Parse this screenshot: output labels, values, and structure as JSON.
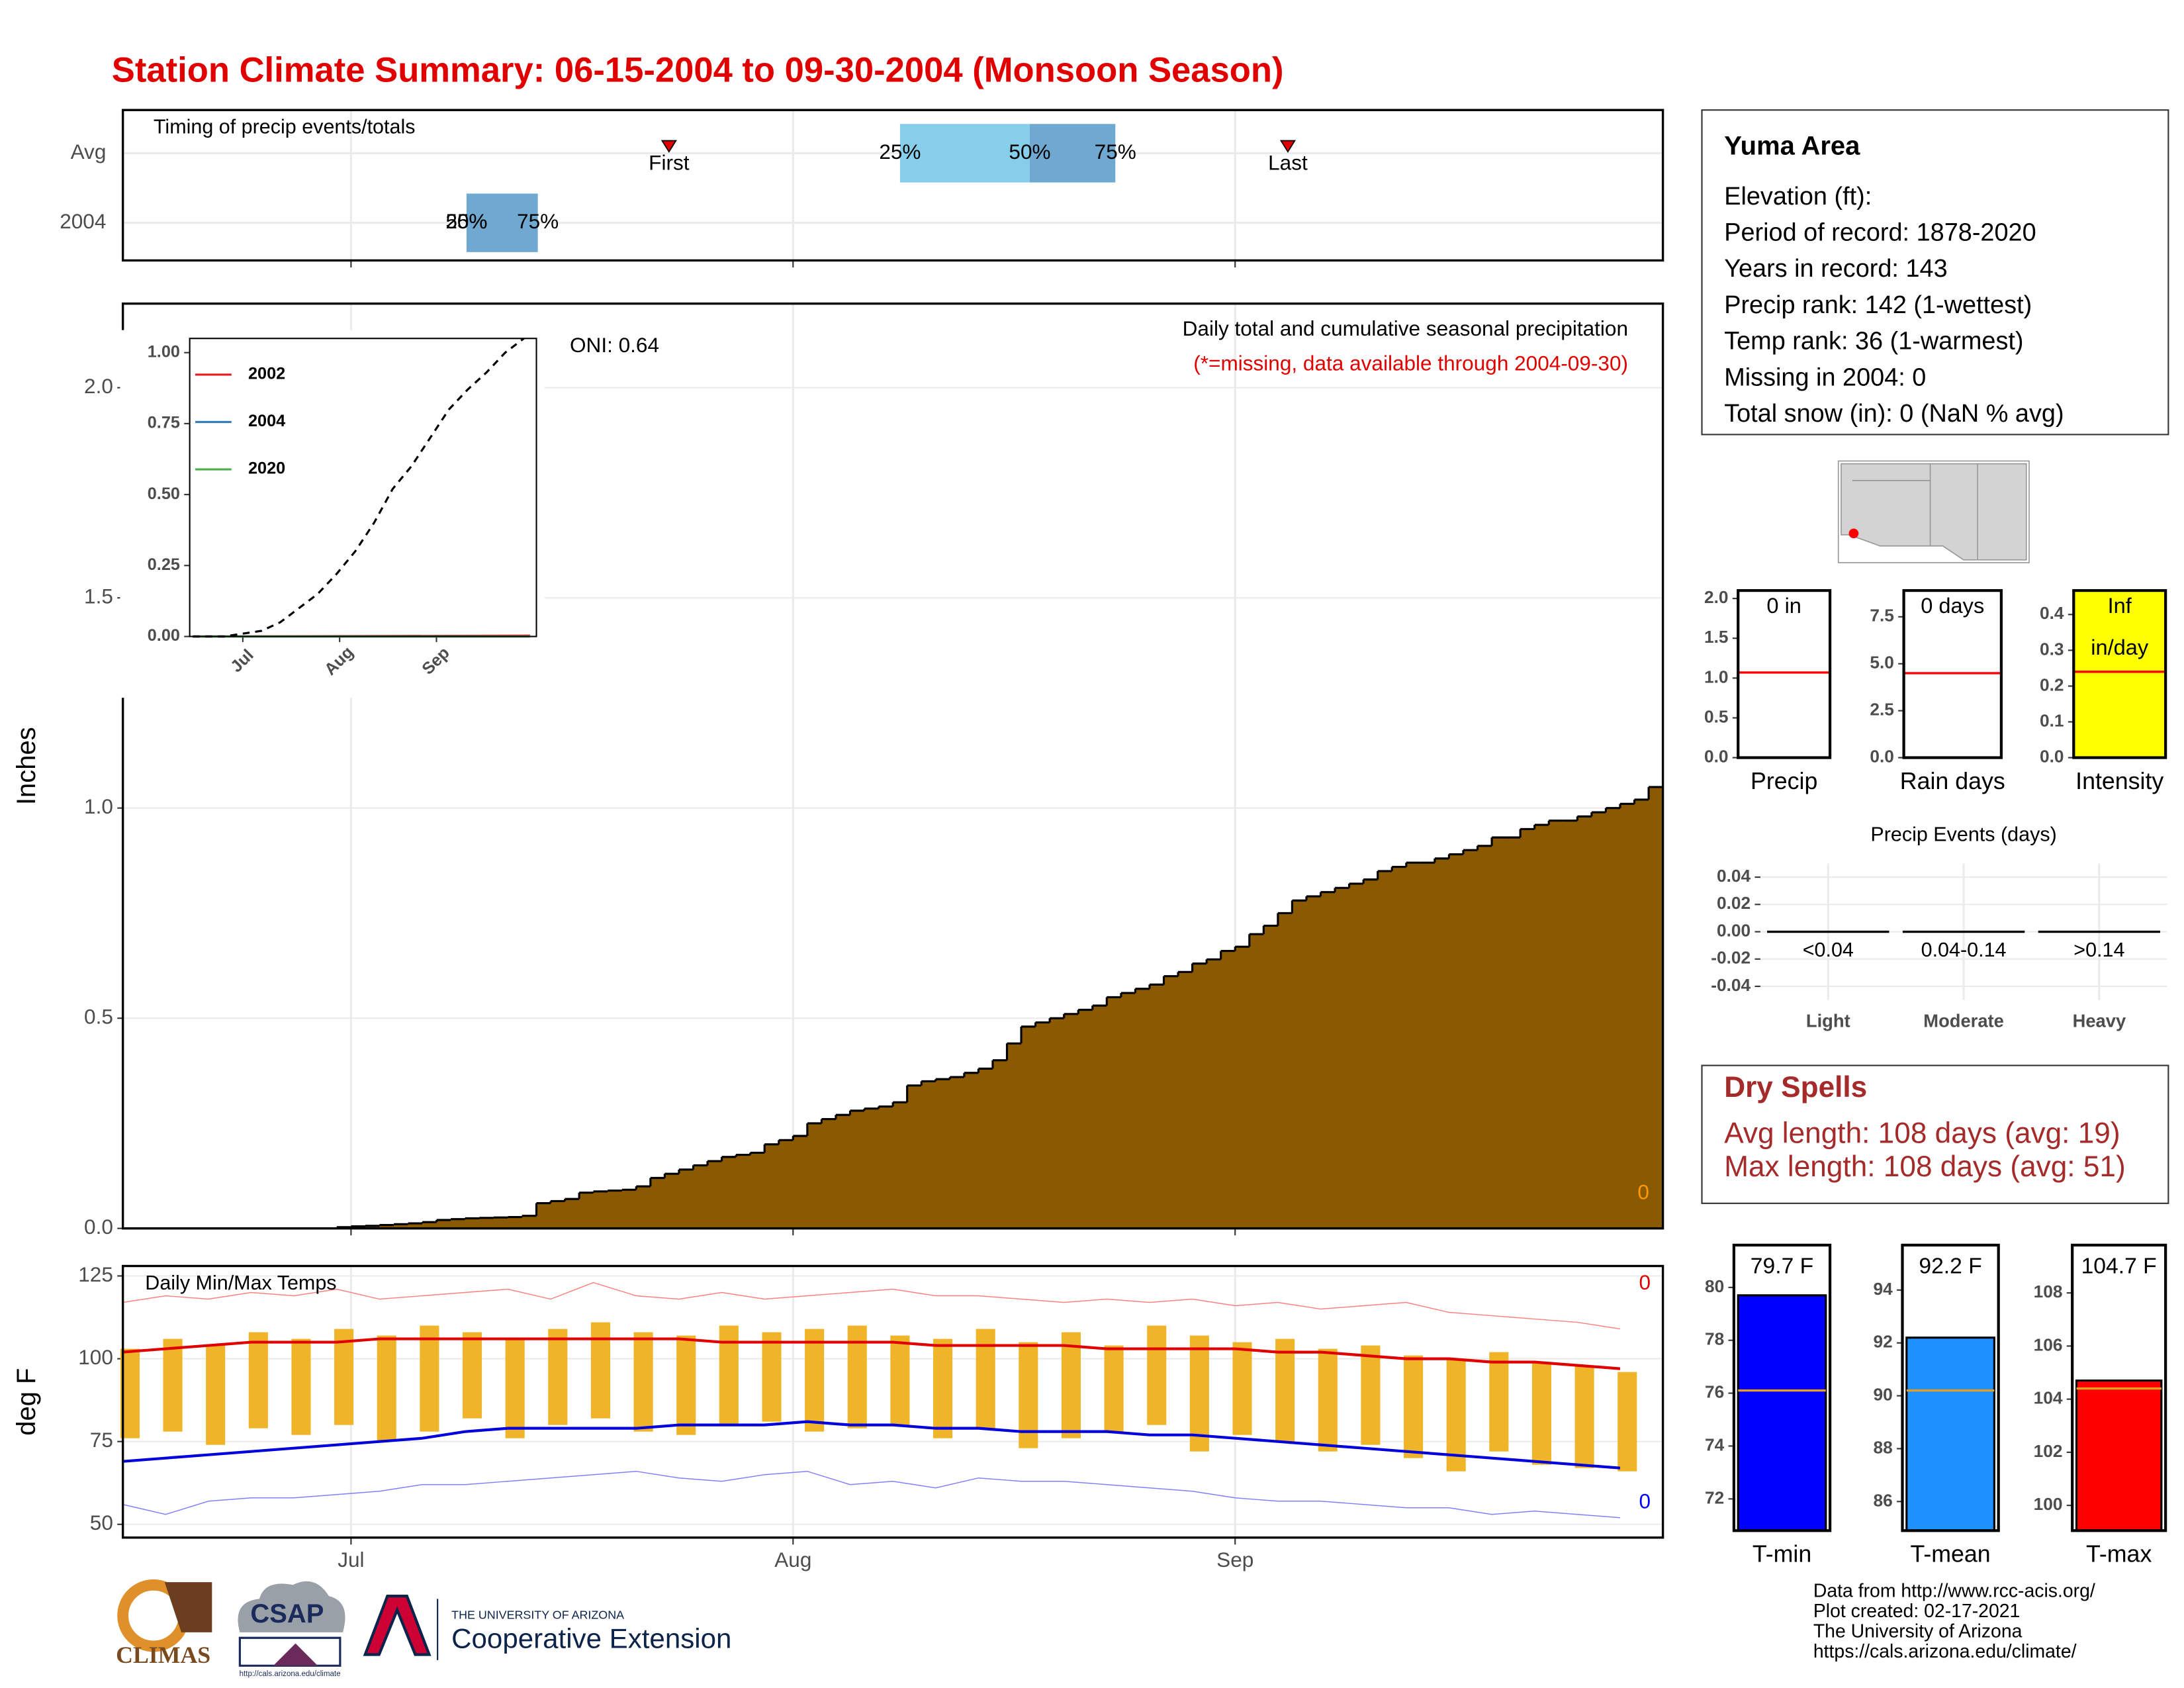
{
  "title": "Station Climate Summary: 06-15-2004 to 09-30-2004 (Monsoon Season)",
  "chart_data": [
    {
      "type": "timing",
      "title": "Timing of precip events/totals",
      "categories": [
        "Avg",
        "2004"
      ],
      "xlim": [
        0,
        108
      ],
      "xticks": [
        16,
        47,
        78
      ],
      "grid": true,
      "colors": [
        "#87ceeb",
        "#6fa8d0"
      ],
      "marker_color": "#e00000",
      "rows": [
        {
          "first": 38.3,
          "q25": 54.5,
          "q50": 63.6,
          "q75": 69.6,
          "last": 81.7
        },
        {
          "q25": 24.1,
          "q50": 24.1,
          "q75": 29.1
        }
      ],
      "labels": {
        "first": "First",
        "last": "Last",
        "q25": "25%",
        "q50": "50%",
        "q75": "75%"
      }
    },
    {
      "type": "step_area",
      "title": "Daily total and cumulative seasonal precipitation",
      "subtitle": "(*=missing, data available through 2004-09-30)",
      "subtitle_color": "#e00000",
      "y_label": "Inches",
      "color": "#8b5a00",
      "grid": true,
      "annotations": [
        {
          "text": "ONI: 0.64",
          "color": "#000000"
        },
        {
          "text": "0",
          "color": "#ff9900"
        }
      ],
      "xlim": [
        0,
        108
      ],
      "xticks": [
        16,
        47,
        78
      ],
      "ylim": [
        0,
        2.2
      ],
      "yticks": [
        {
          "value": 0,
          "label": "0.0"
        },
        0.5,
        {
          "value": 1,
          "label": "1.0"
        },
        1.5,
        {
          "value": 2,
          "label": "2.0"
        }
      ],
      "values": [
        0,
        0,
        0,
        0,
        0,
        0,
        0,
        0,
        0,
        0,
        0,
        0,
        0,
        0,
        0,
        0.003,
        0.005,
        0.006,
        0.008,
        0.01,
        0.012,
        0.015,
        0.02,
        0.022,
        0.024,
        0.025,
        0.026,
        0.027,
        0.03,
        0.06,
        0.065,
        0.07,
        0.085,
        0.088,
        0.09,
        0.092,
        0.1,
        0.12,
        0.13,
        0.14,
        0.15,
        0.16,
        0.17,
        0.175,
        0.18,
        0.2,
        0.21,
        0.22,
        0.25,
        0.26,
        0.27,
        0.28,
        0.285,
        0.29,
        0.3,
        0.34,
        0.35,
        0.355,
        0.36,
        0.37,
        0.38,
        0.4,
        0.44,
        0.48,
        0.49,
        0.5,
        0.51,
        0.52,
        0.53,
        0.55,
        0.56,
        0.57,
        0.58,
        0.6,
        0.61,
        0.63,
        0.64,
        0.66,
        0.67,
        0.7,
        0.72,
        0.75,
        0.78,
        0.79,
        0.8,
        0.81,
        0.82,
        0.83,
        0.85,
        0.86,
        0.87,
        0.87,
        0.88,
        0.89,
        0.9,
        0.91,
        0.93,
        0.93,
        0.95,
        0.96,
        0.97,
        0.97,
        0.98,
        0.99,
        1.0,
        1.01,
        1.02,
        1.05
      ]
    },
    {
      "type": "inset_line",
      "xlim": [
        -1,
        110
      ],
      "xticks": [
        {
          "value": 16,
          "label": "Jul"
        },
        {
          "value": 47,
          "label": "Aug"
        },
        {
          "value": 78,
          "label": "Sep"
        }
      ],
      "ylim": [
        0,
        1.05
      ],
      "yticks": [
        {
          "value": 0,
          "label": "0.00"
        },
        {
          "value": 0.25,
          "label": "0.25"
        },
        {
          "value": 0.5,
          "label": "0.50"
        },
        {
          "value": 0.75,
          "label": "0.75"
        },
        {
          "value": 1,
          "label": "1.00"
        }
      ],
      "series": [
        {
          "name": "2002",
          "color": "#e41a1c",
          "x": [
            0,
            108
          ],
          "values": [
            0,
            0.003
          ]
        },
        {
          "name": "2004",
          "color": "#377eb8",
          "x": [
            0,
            108
          ],
          "values": [
            0,
            0
          ]
        },
        {
          "name": "2020",
          "color": "#4daf4a",
          "x": [
            0,
            108
          ],
          "values": [
            0,
            0
          ]
        }
      ],
      "reference": {
        "color": "#000000",
        "dashed": true,
        "x": [
          0,
          10,
          16,
          22,
          28,
          34,
          40,
          46,
          52,
          58,
          64,
          70,
          76,
          82,
          88,
          94,
          100,
          106
        ],
        "values": [
          0,
          0,
          0.01,
          0.02,
          0.05,
          0.1,
          0.15,
          0.22,
          0.3,
          0.4,
          0.52,
          0.6,
          0.7,
          0.8,
          0.87,
          0.93,
          1.0,
          1.05
        ]
      }
    },
    {
      "type": "temps",
      "title": "Daily Min/Max Temps",
      "y_label": "deg F",
      "grid": true,
      "xlim": [
        0,
        108
      ],
      "xticks": [
        {
          "value": 16,
          "label": "Jul"
        },
        {
          "value": 47,
          "label": "Aug"
        },
        {
          "value": 78,
          "label": "Sep"
        }
      ],
      "ylim": [
        46,
        128
      ],
      "yticks": [
        50,
        75,
        100,
        125
      ],
      "annotations": [
        {
          "text": "0",
          "color": "#e00000"
        },
        {
          "text": "0",
          "color": "#0000ff"
        }
      ],
      "x": [
        0,
        3,
        6,
        9,
        12,
        15,
        18,
        21,
        24,
        27,
        30,
        33,
        36,
        39,
        42,
        45,
        48,
        51,
        54,
        57,
        60,
        63,
        66,
        69,
        72,
        75,
        78,
        81,
        84,
        87,
        90,
        93,
        96,
        99,
        102,
        105
      ],
      "bars": {
        "color": "#f0b428",
        "high": [
          103,
          106,
          104,
          108,
          106,
          109,
          107,
          110,
          108,
          106,
          109,
          111,
          108,
          107,
          110,
          108,
          109,
          110,
          107,
          106,
          109,
          105,
          108,
          104,
          110,
          107,
          105,
          106,
          103,
          104,
          101,
          100,
          102,
          99,
          98,
          96
        ],
        "low": [
          76,
          78,
          74,
          79,
          77,
          80,
          75,
          78,
          82,
          76,
          80,
          82,
          78,
          77,
          80,
          81,
          78,
          79,
          80,
          76,
          79,
          73,
          76,
          78,
          80,
          72,
          77,
          75,
          72,
          74,
          70,
          66,
          72,
          68,
          67,
          66
        ]
      },
      "lines": [
        {
          "color": "#ff8080",
          "thin": true,
          "values": [
            117,
            119,
            118,
            120,
            119,
            121,
            118,
            119,
            120,
            121,
            118,
            123,
            119,
            118,
            120,
            118,
            119,
            120,
            121,
            119,
            119,
            118,
            117,
            118,
            117,
            118,
            116,
            117,
            115,
            116,
            117,
            114,
            113,
            112,
            111,
            109
          ]
        },
        {
          "color": "#e00000",
          "thin": false,
          "values": [
            102,
            103,
            104,
            105,
            105,
            105,
            106,
            106,
            106,
            106,
            106,
            106,
            106,
            106,
            105,
            105,
            105,
            105,
            105,
            104,
            104,
            104,
            104,
            103,
            103,
            103,
            103,
            102,
            102,
            101,
            100,
            100,
            99,
            99,
            98,
            97
          ]
        },
        {
          "color": "#0000dd",
          "thin": false,
          "values": [
            69,
            70,
            71,
            72,
            73,
            74,
            75,
            76,
            78,
            79,
            79,
            79,
            79,
            80,
            80,
            80,
            81,
            80,
            80,
            79,
            79,
            78,
            78,
            78,
            77,
            77,
            76,
            75,
            74,
            73,
            72,
            71,
            70,
            69,
            68,
            67
          ]
        },
        {
          "color": "#8080ff",
          "thin": true,
          "values": [
            56,
            53,
            57,
            58,
            58,
            59,
            60,
            62,
            62,
            63,
            64,
            65,
            66,
            64,
            63,
            65,
            66,
            62,
            63,
            61,
            64,
            63,
            63,
            62,
            61,
            60,
            58,
            57,
            57,
            56,
            55,
            55,
            53,
            54,
            53,
            52
          ]
        }
      ]
    },
    {
      "type": "gauge",
      "label": "Precip",
      "value": 0,
      "value_label": "0 in",
      "avg": 1.07,
      "avg_color": "#ff0000",
      "bar_color": "#ffff00",
      "ylim": [
        0,
        2.1
      ],
      "yticks": [
        {
          "value": 0,
          "label": "0.0"
        },
        0.5,
        {
          "value": 1,
          "label": "1.0"
        },
        1.5,
        {
          "value": 2,
          "label": "2.0"
        }
      ]
    },
    {
      "type": "gauge",
      "label": "Rain days",
      "value": 0,
      "value_label": "0 days",
      "avg": 4.5,
      "avg_color": "#ff0000",
      "bar_color": "#ffff00",
      "ylim": [
        0,
        8.9
      ],
      "yticks": [
        {
          "value": 0,
          "label": "0.0"
        },
        2.5,
        {
          "value": 5,
          "label": "5.0"
        },
        7.5
      ]
    },
    {
      "type": "gauge",
      "label": "Intensity",
      "value": null,
      "value_label": "Inf",
      "unit": "in/day",
      "avg": 0.24,
      "avg_color": "#ff0000",
      "bar_color": "#ffff00",
      "ylim": [
        0,
        0.467
      ],
      "yticks": [
        {
          "value": 0,
          "label": "0.0"
        },
        0.1,
        0.2,
        0.3,
        0.4
      ]
    },
    {
      "type": "events",
      "title": "Precip Events (days)",
      "categories": [
        "Light",
        "Moderate",
        "Heavy"
      ],
      "bin_labels": [
        "<0.04",
        "0.04-0.14",
        ">0.14"
      ],
      "values": [
        0,
        0,
        0
      ],
      "color": "#000000",
      "grid": true,
      "ylim": [
        -0.05,
        0.05
      ],
      "yticks": [
        {
          "value": 0.04,
          "label": "0.04"
        },
        {
          "value": 0.02,
          "label": "0.02"
        },
        {
          "value": 0,
          "label": "0.00"
        },
        {
          "value": -0.02,
          "label": "-0.02"
        },
        {
          "value": -0.04,
          "label": "-0.04"
        }
      ]
    },
    {
      "type": "gauge",
      "label": "T-min",
      "value": 79.7,
      "value_label": "79.7 F",
      "avg": 76.1,
      "avg_color": "#e6a020",
      "bar_color": "#0000ff",
      "ylim": [
        70.8,
        81.6
      ],
      "yticks": [
        72,
        74,
        76,
        78,
        80
      ]
    },
    {
      "type": "gauge",
      "label": "T-mean",
      "value": 92.2,
      "value_label": "92.2 F",
      "avg": 90.2,
      "avg_color": "#e6a020",
      "bar_color": "#1e90ff",
      "ylim": [
        84.9,
        95.7
      ],
      "yticks": [
        86,
        88,
        90,
        92,
        94
      ]
    },
    {
      "type": "gauge",
      "label": "T-max",
      "value": 104.7,
      "value_label": "104.7 F",
      "avg": 104.4,
      "avg_color": "#e6a020",
      "bar_color": "#ff0000",
      "ylim": [
        99.05,
        109.8
      ],
      "yticks": [
        100,
        102,
        104,
        106,
        108
      ]
    }
  ],
  "info": {
    "title": "Yuma Area",
    "lines": [
      "Elevation (ft):",
      "Period of record: 1878-2020",
      "Years in record: 143",
      "Precip rank: 142 (1-wettest)",
      "Temp rank: 36 (1-warmest)",
      "Missing in 2004: 0",
      "Total snow (in): 0 (NaN % avg)"
    ]
  },
  "dry_spells": {
    "title": "Dry Spells",
    "lines": [
      "Avg length: 108 days (avg: 19)",
      "Max length: 108 days (avg: 51)"
    ]
  },
  "footer": [
    "Data from http://www.rcc-acis.org/",
    "Plot created: 02-17-2021",
    "The University of Arizona",
    "https://cals.arizona.edu/climate/"
  ],
  "logos": {
    "climas": "CLIMAS",
    "csap": "CSAP",
    "csap_url": "http://cals.arizona.edu/climate",
    "ua_top": "THE UNIVERSITY OF ARIZONA",
    "ua_main": "Cooperative Extension"
  }
}
